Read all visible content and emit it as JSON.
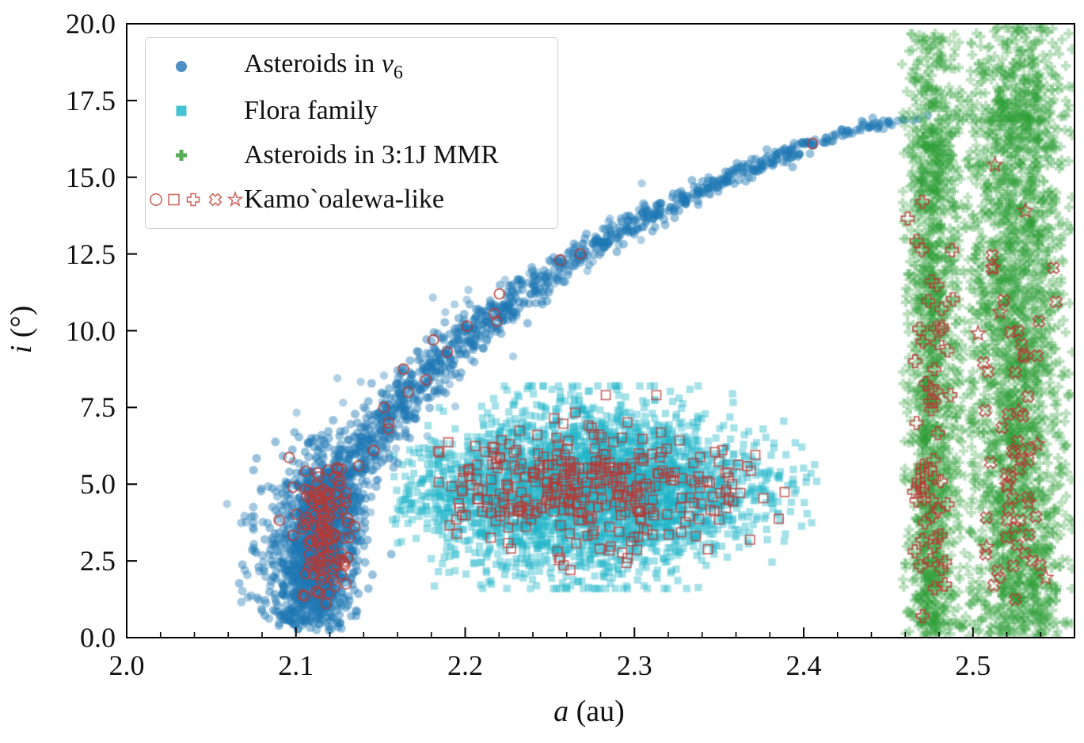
{
  "axes": {
    "xlabel_italic": "a",
    "xlabel_rest": " (au)",
    "ylabel_italic": "i",
    "ylabel_rest": " (°)",
    "x_tick_labels": [
      "2.0",
      "2.1",
      "2.2",
      "2.3",
      "2.4",
      "2.5"
    ],
    "x_tick_values": [
      2.0,
      2.1,
      2.2,
      2.3,
      2.4,
      2.5
    ],
    "x_minor_step": 0.02,
    "y_tick_labels": [
      "0.0",
      "2.5",
      "5.0",
      "7.5",
      "10.0",
      "12.5",
      "15.0",
      "17.5",
      "20.0"
    ],
    "y_tick_values": [
      0,
      2.5,
      5,
      7.5,
      10,
      12.5,
      15,
      17.5,
      20
    ]
  },
  "legend": {
    "rows": [
      {
        "name": "nu6",
        "label_pre": "Asteroids in ",
        "label_sym": "ν",
        "label_sub": "6",
        "marker": "filled-circle",
        "icon_color": "#4e8fc4"
      },
      {
        "name": "flora",
        "label": "Flora family",
        "marker": "filled-square",
        "icon_color": "#43c2d2"
      },
      {
        "name": "mmr",
        "label": "Asteroids in 3:1J MMR",
        "marker": "filled-plus",
        "icon_color": "#55ad59"
      },
      {
        "name": "kamooalewa",
        "label": "Kamo`oalewa-like",
        "markers": [
          "open-circle",
          "open-square",
          "open-plus",
          "open-x",
          "open-star"
        ],
        "icon_color": "#cd6a62"
      }
    ]
  },
  "chart_data": {
    "type": "scatter",
    "xlabel": "a (au)",
    "ylabel": "i (°)",
    "xlim": [
      2.0,
      2.56
    ],
    "ylim": [
      0.0,
      20.0
    ],
    "grid": false,
    "legend_position": "upper left",
    "colors": {
      "nu6_blue": "#1f77b4",
      "flora_cyan": "#1fb5c9",
      "mmr_green": "#2e9e38",
      "kamooalewa_red": "#b63a35"
    },
    "curve_nu6": [
      [
        0.3,
        2.106
      ],
      [
        1,
        2.108
      ],
      [
        2,
        2.111
      ],
      [
        3,
        2.115
      ],
      [
        4,
        2.12
      ],
      [
        5,
        2.127
      ],
      [
        6,
        2.138
      ],
      [
        7,
        2.152
      ],
      [
        8,
        2.167
      ],
      [
        9,
        2.185
      ],
      [
        10,
        2.205
      ],
      [
        11,
        2.228
      ],
      [
        12,
        2.252
      ],
      [
        13,
        2.283
      ],
      [
        14,
        2.318
      ],
      [
        15,
        2.356
      ],
      [
        16,
        2.4
      ],
      [
        16.5,
        2.428
      ],
      [
        17,
        2.462
      ]
    ],
    "series": [
      {
        "name": "nu6-base-clump",
        "marker": "circle",
        "color": "#1f77b4",
        "opacity": 0.45,
        "size": 5.5,
        "count": 750,
        "dist": "gauss",
        "mean": [
          2.113,
          3.3
        ],
        "sigma": [
          0.012,
          1.5
        ],
        "clip": [
          2.065,
          2.148,
          0.2,
          6.8
        ]
      },
      {
        "name": "nu6-left-scatter",
        "marker": "circle",
        "color": "#1f77b4",
        "opacity": 0.4,
        "size": 5.5,
        "count": 60,
        "dist": "uniform",
        "box": [
          2.066,
          2.104,
          0.6,
          5.2
        ]
      },
      {
        "name": "nu6-band",
        "marker": "circle",
        "color": "#1f77b4",
        "opacity": 0.45,
        "size": 5.5,
        "count": 1500,
        "dist": "band",
        "i_range": [
          0.4,
          16.9
        ],
        "bias": 1.2,
        "width": [
          0.012,
          0.0065
        ]
      },
      {
        "name": "nu6-band-spray",
        "marker": "circle",
        "color": "#1f77b4",
        "opacity": 0.35,
        "size": 5.2,
        "count": 70,
        "dist": "band_spray",
        "i_range": [
          4,
          15
        ],
        "spread": 0.02
      },
      {
        "name": "flora-family",
        "marker": "square",
        "color": "#1fb5c9",
        "opacity": 0.4,
        "size": 4.6,
        "count": 3300,
        "dist": "taper",
        "a_mean": 2.272,
        "a_sigma": 0.052,
        "a_clip": [
          2.157,
          2.408
        ],
        "i_mean": 4.85,
        "i_sigma": 1.35,
        "taper": 0.5,
        "i_clip": [
          1.6,
          8.2
        ]
      },
      {
        "name": "mmr-band-1",
        "marker": "plus",
        "color": "#2e9e38",
        "opacity": 0.32,
        "size": 6.2,
        "count": 1500,
        "dist": "mmr",
        "a_mean": 2.4755,
        "a_sigma": 0.0078,
        "a_clip": [
          2.458,
          2.494
        ],
        "i_main": [
          0.05,
          16.0
        ],
        "p_main": 0.87,
        "i_ext": 3.7
      },
      {
        "name": "mmr-band-2",
        "marker": "plus",
        "color": "#2e9e38",
        "opacity": 0.32,
        "size": 6.2,
        "count": 2500,
        "dist": "mmr",
        "a_mean": 2.5265,
        "a_sigma": 0.0145,
        "a_clip": [
          2.4975,
          2.559
        ],
        "i_main": [
          0.05,
          16.8
        ],
        "p_main": 0.86,
        "i_ext": 3.2
      },
      {
        "name": "mmr-gap-scatter",
        "marker": "plus",
        "color": "#2e9e38",
        "opacity": 0.3,
        "size": 6.0,
        "count": 170,
        "dist": "uniform",
        "box": [
          2.487,
          2.504,
          0.1,
          18.2
        ]
      },
      {
        "name": "kamooalewa-circles-core",
        "marker": "ocircle",
        "color": "#b63a35",
        "opacity": 0.8,
        "size": 6.4,
        "lw": 1.9,
        "count": 135,
        "dist": "gauss",
        "mean": [
          2.1165,
          3.5
        ],
        "sigma": [
          0.0075,
          1.25
        ],
        "clip": [
          2.072,
          2.137,
          0.8,
          6.2
        ]
      },
      {
        "name": "kamooalewa-circles-band",
        "marker": "ocircle",
        "color": "#b63a35",
        "opacity": 0.8,
        "size": 6.4,
        "lw": 1.9,
        "dist": "curve",
        "i_list": [
          5.6,
          6.1,
          6.8,
          7.0,
          7.5,
          8.0,
          8.4,
          8.75,
          9.3,
          9.7,
          10.15,
          10.3,
          10.55,
          11.2,
          12.3,
          12.5,
          16.1
        ],
        "jitter": 0.006
      },
      {
        "name": "kamooalewa-squares",
        "marker": "osquare",
        "color": "#b63a35",
        "opacity": 0.75,
        "size": 5.6,
        "lw": 1.7,
        "count": 370,
        "dist": "taper",
        "a_mean": 2.268,
        "a_sigma": 0.047,
        "a_clip": [
          2.183,
          2.402
        ],
        "i_mean": 4.8,
        "i_sigma": 1.05,
        "taper": 0.4,
        "i_clip": [
          2.2,
          7.9
        ]
      },
      {
        "name": "kamooalewa-plusses",
        "marker": "oplus",
        "color": "#b63a35",
        "opacity": 0.8,
        "size": 8.0,
        "lw": 1.8,
        "count": 58,
        "dist": "mixband",
        "a_mean": 2.4755,
        "a_sigma": 0.0068,
        "a_clip": [
          2.461,
          2.491
        ],
        "i_mix": [
          [
            0.6,
            4.2,
            1.8
          ],
          [
            0.25,
            8.0,
            1.5
          ],
          [
            0.15,
            11.5,
            1.8
          ]
        ],
        "i_clip": [
          0.4,
          15.2
        ]
      },
      {
        "name": "kamooalewa-xs",
        "marker": "ox",
        "color": "#b63a35",
        "opacity": 0.8,
        "size": 7.6,
        "lw": 1.8,
        "count": 50,
        "dist": "mixband",
        "a_mean": 2.5245,
        "a_sigma": 0.0125,
        "a_clip": [
          2.499,
          2.552
        ],
        "i_mix": [
          [
            0.45,
            3.2,
            1.3
          ],
          [
            0.35,
            7.0,
            1.7
          ],
          [
            0.2,
            11.8,
            1.7
          ]
        ],
        "i_clip": [
          0.5,
          13.5
        ]
      },
      {
        "name": "kamooalewa-stars",
        "marker": "ostar",
        "color": "#b63a35",
        "opacity": 0.8,
        "size": 9.5,
        "lw": 1.7,
        "dist": "points",
        "points": [
          [
            2.513,
            15.4
          ],
          [
            2.531,
            13.9
          ],
          [
            2.512,
            12.05
          ],
          [
            2.527,
            7.38
          ],
          [
            2.503,
            9.9
          ],
          [
            2.538,
            6.3
          ],
          [
            2.52,
            4.95
          ],
          [
            2.533,
            4.4
          ],
          [
            2.508,
            2.95
          ],
          [
            2.543,
            1.95
          ],
          [
            2.516,
            10.6
          ]
        ]
      },
      {
        "name": "kamooalewa-circle-outlier",
        "marker": "ocircle",
        "color": "#b63a35",
        "opacity": 0.8,
        "size": 6.4,
        "lw": 1.9,
        "dist": "points",
        "points": [
          [
            2.516,
            1.95
          ]
        ]
      }
    ]
  }
}
